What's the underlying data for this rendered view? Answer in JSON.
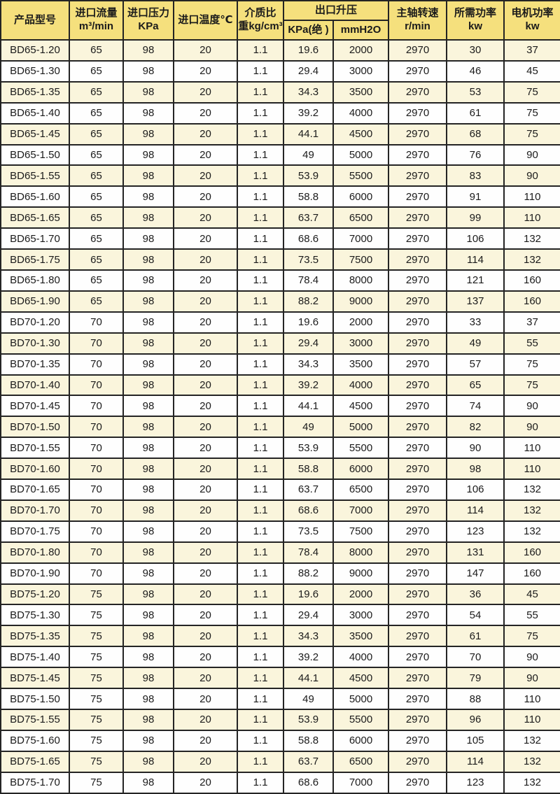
{
  "colors": {
    "header_bg": "#f5e07d",
    "row_odd_bg": "#faf5dc",
    "row_even_bg": "#fefefe",
    "border": "#242424",
    "text": "#1b1b1b"
  },
  "header": {
    "model": "产品型号",
    "flow_line1": "进口流量",
    "flow_line2": "m³/min",
    "pressure_line1": "进口压力",
    "pressure_line2": "KPa",
    "temperature": "进口温度℃",
    "medium_line1": "介质比",
    "medium_line2": "重kg/cm³",
    "outlet_group": "出口升压",
    "outlet_abs": "KPa(绝 )",
    "outlet_mmh2o": "mmH2O",
    "speed_line1": "主轴转速",
    "speed_line2": "r/min",
    "required_line1": "所需功率",
    "required_line2": "kw",
    "motor_line1": "电机功率",
    "motor_line2": "kw"
  },
  "chart_data": {
    "type": "table",
    "columns": [
      "产品型号",
      "进口流量 m³/min",
      "进口压力 KPa",
      "进口温度℃",
      "介质比重kg/cm³",
      "出口升压 KPa(绝 )",
      "出口升压 mmH2O",
      "主轴转速 r/min",
      "所需功率 kw",
      "电机功率 kw"
    ],
    "rows": [
      [
        "BD65-1.20",
        "65",
        "98",
        "20",
        "1.1",
        "19.6",
        "2000",
        "2970",
        "30",
        "37"
      ],
      [
        "BD65-1.30",
        "65",
        "98",
        "20",
        "1.1",
        "29.4",
        "3000",
        "2970",
        "46",
        "45"
      ],
      [
        "BD65-1.35",
        "65",
        "98",
        "20",
        "1.1",
        "34.3",
        "3500",
        "2970",
        "53",
        "75"
      ],
      [
        "BD65-1.40",
        "65",
        "98",
        "20",
        "1.1",
        "39.2",
        "4000",
        "2970",
        "61",
        "75"
      ],
      [
        "BD65-1.45",
        "65",
        "98",
        "20",
        "1.1",
        "44.1",
        "4500",
        "2970",
        "68",
        "75"
      ],
      [
        "BD65-1.50",
        "65",
        "98",
        "20",
        "1.1",
        "49",
        "5000",
        "2970",
        "76",
        "90"
      ],
      [
        "BD65-1.55",
        "65",
        "98",
        "20",
        "1.1",
        "53.9",
        "5500",
        "2970",
        "83",
        "90"
      ],
      [
        "BD65-1.60",
        "65",
        "98",
        "20",
        "1.1",
        "58.8",
        "6000",
        "2970",
        "91",
        "110"
      ],
      [
        "BD65-1.65",
        "65",
        "98",
        "20",
        "1.1",
        "63.7",
        "6500",
        "2970",
        "99",
        "110"
      ],
      [
        "BD65-1.70",
        "65",
        "98",
        "20",
        "1.1",
        "68.6",
        "7000",
        "2970",
        "106",
        "132"
      ],
      [
        "BD65-1.75",
        "65",
        "98",
        "20",
        "1.1",
        "73.5",
        "7500",
        "2970",
        "114",
        "132"
      ],
      [
        "BD65-1.80",
        "65",
        "98",
        "20",
        "1.1",
        "78.4",
        "8000",
        "2970",
        "121",
        "160"
      ],
      [
        "BD65-1.90",
        "65",
        "98",
        "20",
        "1.1",
        "88.2",
        "9000",
        "2970",
        "137",
        "160"
      ],
      [
        "BD70-1.20",
        "70",
        "98",
        "20",
        "1.1",
        "19.6",
        "2000",
        "2970",
        "33",
        "37"
      ],
      [
        "BD70-1.30",
        "70",
        "98",
        "20",
        "1.1",
        "29.4",
        "3000",
        "2970",
        "49",
        "55"
      ],
      [
        "BD70-1.35",
        "70",
        "98",
        "20",
        "1.1",
        "34.3",
        "3500",
        "2970",
        "57",
        "75"
      ],
      [
        "BD70-1.40",
        "70",
        "98",
        "20",
        "1.1",
        "39.2",
        "4000",
        "2970",
        "65",
        "75"
      ],
      [
        "BD70-1.45",
        "70",
        "98",
        "20",
        "1.1",
        "44.1",
        "4500",
        "2970",
        "74",
        "90"
      ],
      [
        "BD70-1.50",
        "70",
        "98",
        "20",
        "1.1",
        "49",
        "5000",
        "2970",
        "82",
        "90"
      ],
      [
        "BD70-1.55",
        "70",
        "98",
        "20",
        "1.1",
        "53.9",
        "5500",
        "2970",
        "90",
        "110"
      ],
      [
        "BD70-1.60",
        "70",
        "98",
        "20",
        "1.1",
        "58.8",
        "6000",
        "2970",
        "98",
        "110"
      ],
      [
        "BD70-1.65",
        "70",
        "98",
        "20",
        "1.1",
        "63.7",
        "6500",
        "2970",
        "106",
        "132"
      ],
      [
        "BD70-1.70",
        "70",
        "98",
        "20",
        "1.1",
        "68.6",
        "7000",
        "2970",
        "114",
        "132"
      ],
      [
        "BD70-1.75",
        "70",
        "98",
        "20",
        "1.1",
        "73.5",
        "7500",
        "2970",
        "123",
        "132"
      ],
      [
        "BD70-1.80",
        "70",
        "98",
        "20",
        "1.1",
        "78.4",
        "8000",
        "2970",
        "131",
        "160"
      ],
      [
        "BD70-1.90",
        "70",
        "98",
        "20",
        "1.1",
        "88.2",
        "9000",
        "2970",
        "147",
        "160"
      ],
      [
        "BD75-1.20",
        "75",
        "98",
        "20",
        "1.1",
        "19.6",
        "2000",
        "2970",
        "36",
        "45"
      ],
      [
        "BD75-1.30",
        "75",
        "98",
        "20",
        "1.1",
        "29.4",
        "3000",
        "2970",
        "54",
        "55"
      ],
      [
        "BD75-1.35",
        "75",
        "98",
        "20",
        "1.1",
        "34.3",
        "3500",
        "2970",
        "61",
        "75"
      ],
      [
        "BD75-1.40",
        "75",
        "98",
        "20",
        "1.1",
        "39.2",
        "4000",
        "2970",
        "70",
        "90"
      ],
      [
        "BD75-1.45",
        "75",
        "98",
        "20",
        "1.1",
        "44.1",
        "4500",
        "2970",
        "79",
        "90"
      ],
      [
        "BD75-1.50",
        "75",
        "98",
        "20",
        "1.1",
        "49",
        "5000",
        "2970",
        "88",
        "110"
      ],
      [
        "BD75-1.55",
        "75",
        "98",
        "20",
        "1.1",
        "53.9",
        "5500",
        "2970",
        "96",
        "110"
      ],
      [
        "BD75-1.60",
        "75",
        "98",
        "20",
        "1.1",
        "58.8",
        "6000",
        "2970",
        "105",
        "132"
      ],
      [
        "BD75-1.65",
        "75",
        "98",
        "20",
        "1.1",
        "63.7",
        "6500",
        "2970",
        "114",
        "132"
      ],
      [
        "BD75-1.70",
        "75",
        "98",
        "20",
        "1.1",
        "68.6",
        "7000",
        "2970",
        "123",
        "132"
      ]
    ]
  }
}
